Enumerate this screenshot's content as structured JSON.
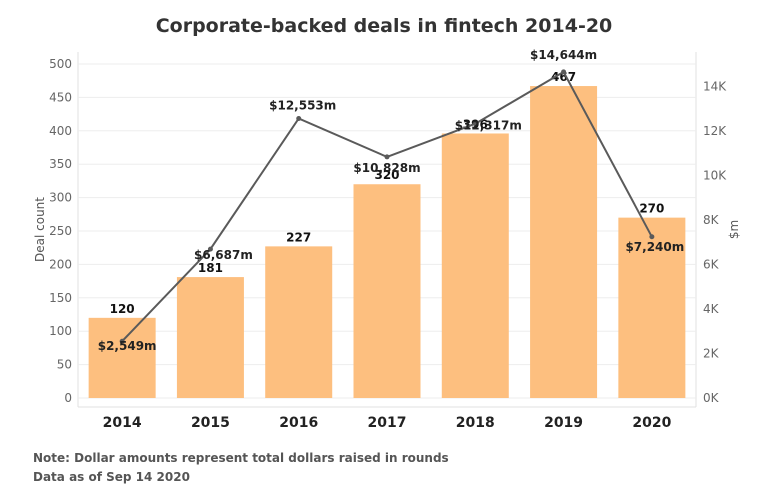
{
  "chart_data": {
    "type": "bar",
    "title": "Corporate-backed deals in fintech 2014-20",
    "categories": [
      "2014",
      "2015",
      "2016",
      "2017",
      "2018",
      "2019",
      "2020"
    ],
    "ylabel_left": "Deal count",
    "ylabel_right": "$m",
    "ylim_left": [
      0,
      500
    ],
    "ylim_right": [
      0,
      15000
    ],
    "yticks_left": [
      "0",
      "50",
      "100",
      "150",
      "200",
      "250",
      "300",
      "350",
      "400",
      "450",
      "500"
    ],
    "yticks_right": [
      "0K",
      "2K",
      "4K",
      "6K",
      "8K",
      "10K",
      "12K",
      "14K"
    ],
    "grid": true,
    "series": [
      {
        "name": "Deal count",
        "type": "bar",
        "axis": "left",
        "values": [
          120,
          181,
          227,
          320,
          396,
          467,
          270
        ],
        "labels": [
          "120",
          "181",
          "227",
          "320",
          "396",
          "467",
          "270"
        ],
        "color": "#FDBF7F"
      },
      {
        "name": "$m",
        "type": "line",
        "axis": "right",
        "values": [
          2549,
          6687,
          12553,
          10828,
          12317,
          14644,
          7240
        ],
        "labels": [
          "$2,549m",
          "$6,687m",
          "$12,553m",
          "$10,828m",
          "$12,317m",
          "$14,644m",
          "$7,240m"
        ],
        "color": "#5a5a5a"
      }
    ]
  },
  "notes": {
    "line1": "Note: Dollar amounts represent total dollars raised in rounds",
    "line2": "Data as of Sep 14 2020"
  }
}
